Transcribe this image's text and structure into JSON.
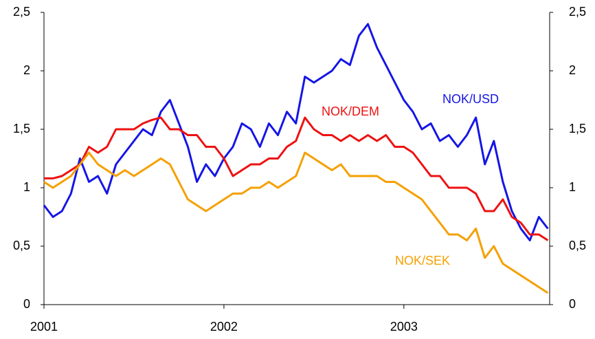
{
  "chart_data": {
    "type": "line",
    "x": [
      2001.0,
      2001.05,
      2001.1,
      2001.15,
      2001.2,
      2001.25,
      2001.3,
      2001.35,
      2001.4,
      2001.45,
      2001.5,
      2001.55,
      2001.6,
      2001.65,
      2001.7,
      2001.75,
      2001.8,
      2001.85,
      2001.9,
      2001.95,
      2002.0,
      2002.05,
      2002.1,
      2002.15,
      2002.2,
      2002.25,
      2002.3,
      2002.35,
      2002.4,
      2002.45,
      2002.5,
      2002.55,
      2002.6,
      2002.65,
      2002.7,
      2002.75,
      2002.8,
      2002.85,
      2002.9,
      2002.95,
      2003.0,
      2003.05,
      2003.1,
      2003.15,
      2003.2,
      2003.25,
      2003.3,
      2003.35,
      2003.4,
      2003.45,
      2003.5,
      2003.55,
      2003.6,
      2003.65,
      2003.7,
      2003.75,
      2003.8
    ],
    "series": [
      {
        "name": "NOK/USD",
        "color": "#1515e6",
        "values": [
          0.85,
          0.75,
          0.8,
          0.95,
          1.25,
          1.05,
          1.1,
          0.95,
          1.2,
          1.3,
          1.4,
          1.5,
          1.45,
          1.65,
          1.75,
          1.55,
          1.35,
          1.05,
          1.2,
          1.1,
          1.25,
          1.35,
          1.55,
          1.5,
          1.35,
          1.55,
          1.45,
          1.65,
          1.55,
          1.95,
          1.9,
          1.95,
          2.0,
          2.1,
          2.05,
          2.3,
          2.4,
          2.2,
          2.05,
          1.9,
          1.75,
          1.65,
          1.5,
          1.55,
          1.4,
          1.45,
          1.35,
          1.45,
          1.6,
          1.2,
          1.4,
          1.05,
          0.8,
          0.65,
          0.55,
          0.75,
          0.65
        ]
      },
      {
        "name": "NOK/DEM",
        "color": "#ee1111",
        "values": [
          1.08,
          1.08,
          1.1,
          1.15,
          1.2,
          1.35,
          1.3,
          1.35,
          1.5,
          1.5,
          1.5,
          1.55,
          1.58,
          1.6,
          1.5,
          1.5,
          1.45,
          1.45,
          1.35,
          1.35,
          1.25,
          1.1,
          1.15,
          1.2,
          1.2,
          1.25,
          1.25,
          1.35,
          1.4,
          1.6,
          1.5,
          1.45,
          1.45,
          1.4,
          1.45,
          1.4,
          1.45,
          1.4,
          1.45,
          1.35,
          1.35,
          1.3,
          1.2,
          1.1,
          1.1,
          1.0,
          1.0,
          1.0,
          0.95,
          0.8,
          0.8,
          0.9,
          0.75,
          0.7,
          0.6,
          0.6,
          0.55
        ]
      },
      {
        "name": "NOK/SEK",
        "color": "#f5a000",
        "values": [
          1.05,
          1.0,
          1.05,
          1.1,
          1.2,
          1.3,
          1.2,
          1.15,
          1.1,
          1.15,
          1.1,
          1.15,
          1.2,
          1.25,
          1.2,
          1.05,
          0.9,
          0.85,
          0.8,
          0.85,
          0.9,
          0.95,
          0.95,
          1.0,
          1.0,
          1.05,
          1.0,
          1.05,
          1.1,
          1.3,
          1.25,
          1.2,
          1.15,
          1.2,
          1.1,
          1.1,
          1.1,
          1.1,
          1.05,
          1.05,
          1.0,
          0.95,
          0.9,
          0.8,
          0.7,
          0.6,
          0.6,
          0.55,
          0.65,
          0.4,
          0.5,
          0.35,
          0.3,
          0.25,
          0.2,
          0.15,
          0.1
        ]
      }
    ],
    "xlim": [
      2001,
      2003.81
    ],
    "xticks": [
      2001,
      2002,
      2003
    ],
    "ylim": [
      0,
      2.5
    ],
    "yticks": [
      0,
      {
        "value": 0.5,
        "label": "0,5"
      },
      1,
      {
        "value": 1.5,
        "label": "1,5"
      },
      2,
      {
        "value": 2.5,
        "label": "2,5"
      }
    ],
    "y2lim": [
      0,
      2.5
    ],
    "y2ticks": [
      0,
      {
        "value": 0.5,
        "label": "0,5"
      },
      1,
      {
        "value": 1.5,
        "label": "1,5"
      },
      2,
      {
        "value": 2.5,
        "label": "2,5"
      }
    ]
  }
}
